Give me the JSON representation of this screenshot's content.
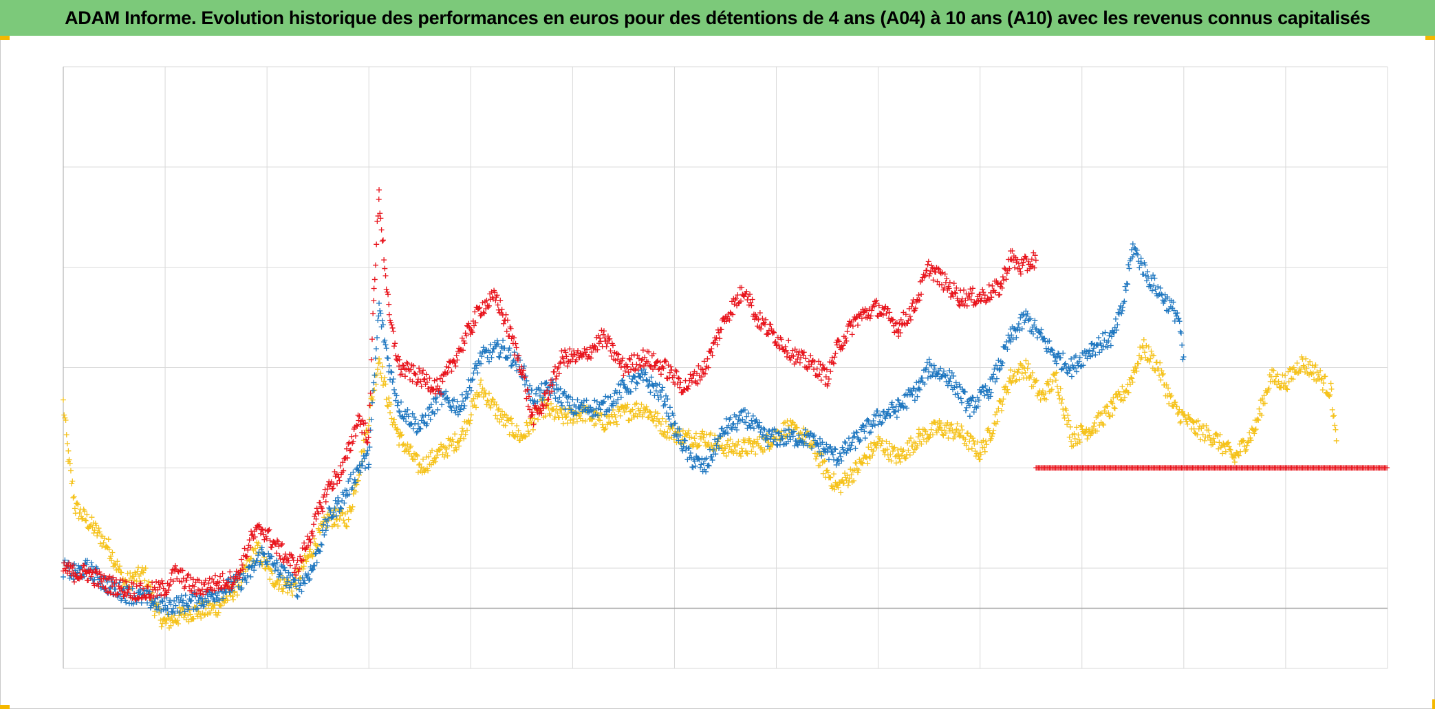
{
  "title": "ADAM Informe. Evolution historique des performances en euros pour des détentions de 4 ans (A04) à 10 ans (A10) avec les revenus connus capitalisés",
  "colors": {
    "title_bg": "#7cc97a",
    "grid": "#d9d9d9",
    "baseline": "#a6a6a6",
    "corner_marks": "#f5b800"
  },
  "chart_data": {
    "type": "scatter",
    "marker": "plus",
    "title": "ADAM Informe. Evolution historique des performances en euros pour des détentions de 4 ans (A04) à 10 ans (A10) avec les revenus connus capitalisés",
    "xlabel": "",
    "ylabel": "",
    "tick_labels_visible": false,
    "grid": true,
    "x_gridlines": 13,
    "y_gridlines": [
      0,
      1,
      2,
      3,
      4,
      5,
      6
    ],
    "baseline_y": 0.6,
    "xlim": [
      0,
      13
    ],
    "ylim": [
      0,
      6
    ],
    "legend": "none",
    "series": [
      {
        "color": "#f5c21b",
        "keypoints": [
          [
            0.0,
            2.65
          ],
          [
            0.05,
            2.1
          ],
          [
            0.12,
            1.6
          ],
          [
            0.3,
            1.4
          ],
          [
            0.45,
            1.2
          ],
          [
            0.6,
            0.85
          ],
          [
            0.8,
            0.95
          ],
          [
            0.9,
            0.6
          ],
          [
            1.0,
            0.45
          ],
          [
            1.2,
            0.55
          ],
          [
            1.5,
            0.6
          ],
          [
            1.7,
            0.8
          ],
          [
            1.9,
            1.2
          ],
          [
            2.05,
            0.9
          ],
          [
            2.25,
            0.8
          ],
          [
            2.4,
            1.1
          ],
          [
            2.6,
            1.5
          ],
          [
            2.8,
            1.5
          ],
          [
            2.95,
            2.2
          ],
          [
            3.1,
            3.1
          ],
          [
            3.2,
            2.6
          ],
          [
            3.3,
            2.3
          ],
          [
            3.5,
            2.0
          ],
          [
            3.7,
            2.15
          ],
          [
            3.9,
            2.3
          ],
          [
            4.1,
            2.8
          ],
          [
            4.3,
            2.5
          ],
          [
            4.5,
            2.3
          ],
          [
            4.7,
            2.6
          ],
          [
            4.9,
            2.5
          ],
          [
            5.1,
            2.55
          ],
          [
            5.3,
            2.45
          ],
          [
            5.5,
            2.55
          ],
          [
            5.7,
            2.6
          ],
          [
            5.9,
            2.4
          ],
          [
            6.1,
            2.3
          ],
          [
            6.3,
            2.3
          ],
          [
            6.5,
            2.2
          ],
          [
            6.7,
            2.2
          ],
          [
            6.9,
            2.25
          ],
          [
            7.1,
            2.4
          ],
          [
            7.3,
            2.3
          ],
          [
            7.5,
            1.95
          ],
          [
            7.6,
            1.8
          ],
          [
            7.8,
            2.0
          ],
          [
            8.0,
            2.25
          ],
          [
            8.2,
            2.1
          ],
          [
            8.4,
            2.3
          ],
          [
            8.6,
            2.4
          ],
          [
            8.8,
            2.35
          ],
          [
            9.0,
            2.15
          ],
          [
            9.1,
            2.35
          ],
          [
            9.3,
            2.9
          ],
          [
            9.45,
            3.0
          ],
          [
            9.6,
            2.7
          ],
          [
            9.75,
            2.9
          ],
          [
            9.9,
            2.3
          ],
          [
            10.1,
            2.4
          ],
          [
            10.3,
            2.6
          ],
          [
            10.45,
            2.8
          ],
          [
            10.6,
            3.2
          ],
          [
            10.75,
            3.0
          ],
          [
            10.9,
            2.6
          ],
          [
            11.1,
            2.4
          ],
          [
            11.3,
            2.3
          ],
          [
            11.5,
            2.1
          ],
          [
            11.7,
            2.4
          ],
          [
            11.85,
            2.9
          ],
          [
            12.0,
            2.85
          ],
          [
            12.15,
            3.05
          ],
          [
            12.3,
            2.95
          ],
          [
            12.45,
            2.75
          ],
          [
            12.5,
            2.2
          ]
        ]
      },
      {
        "color": "#1f77c0",
        "keypoints": [
          [
            0.0,
            1.0
          ],
          [
            0.1,
            0.95
          ],
          [
            0.25,
            1.0
          ],
          [
            0.4,
            0.85
          ],
          [
            0.6,
            0.75
          ],
          [
            0.8,
            0.7
          ],
          [
            1.0,
            0.62
          ],
          [
            1.2,
            0.65
          ],
          [
            1.4,
            0.7
          ],
          [
            1.6,
            0.8
          ],
          [
            1.8,
            0.9
          ],
          [
            1.95,
            1.15
          ],
          [
            2.1,
            1.0
          ],
          [
            2.3,
            0.8
          ],
          [
            2.45,
            1.0
          ],
          [
            2.6,
            1.5
          ],
          [
            2.75,
            1.7
          ],
          [
            2.9,
            2.0
          ],
          [
            3.0,
            2.1
          ],
          [
            3.1,
            3.6
          ],
          [
            3.2,
            3.0
          ],
          [
            3.3,
            2.6
          ],
          [
            3.5,
            2.4
          ],
          [
            3.7,
            2.7
          ],
          [
            3.9,
            2.6
          ],
          [
            4.1,
            3.1
          ],
          [
            4.3,
            3.2
          ],
          [
            4.5,
            3.0
          ],
          [
            4.6,
            2.7
          ],
          [
            4.8,
            2.8
          ],
          [
            5.0,
            2.6
          ],
          [
            5.3,
            2.6
          ],
          [
            5.5,
            2.8
          ],
          [
            5.7,
            2.9
          ],
          [
            5.9,
            2.7
          ],
          [
            6.0,
            2.4
          ],
          [
            6.15,
            2.1
          ],
          [
            6.3,
            2.0
          ],
          [
            6.5,
            2.4
          ],
          [
            6.7,
            2.5
          ],
          [
            6.9,
            2.3
          ],
          [
            7.1,
            2.3
          ],
          [
            7.3,
            2.3
          ],
          [
            7.6,
            2.1
          ],
          [
            7.8,
            2.3
          ],
          [
            8.0,
            2.5
          ],
          [
            8.2,
            2.6
          ],
          [
            8.4,
            2.8
          ],
          [
            8.5,
            3.0
          ],
          [
            8.7,
            2.9
          ],
          [
            8.9,
            2.6
          ],
          [
            9.1,
            2.8
          ],
          [
            9.3,
            3.3
          ],
          [
            9.45,
            3.5
          ],
          [
            9.6,
            3.3
          ],
          [
            9.75,
            3.1
          ],
          [
            9.9,
            3.0
          ],
          [
            10.1,
            3.2
          ],
          [
            10.3,
            3.3
          ],
          [
            10.4,
            3.6
          ],
          [
            10.5,
            4.2
          ],
          [
            10.65,
            3.9
          ],
          [
            10.8,
            3.7
          ],
          [
            10.95,
            3.5
          ],
          [
            11.0,
            3.0
          ]
        ]
      },
      {
        "color": "#e8141c",
        "keypoints": [
          [
            0.0,
            1.0
          ],
          [
            0.1,
            0.95
          ],
          [
            0.25,
            0.95
          ],
          [
            0.4,
            0.85
          ],
          [
            0.6,
            0.8
          ],
          [
            0.8,
            0.75
          ],
          [
            1.0,
            0.8
          ],
          [
            1.1,
            0.95
          ],
          [
            1.3,
            0.8
          ],
          [
            1.5,
            0.85
          ],
          [
            1.7,
            0.9
          ],
          [
            1.85,
            1.3
          ],
          [
            1.95,
            1.4
          ],
          [
            2.1,
            1.2
          ],
          [
            2.3,
            1.0
          ],
          [
            2.45,
            1.4
          ],
          [
            2.6,
            1.8
          ],
          [
            2.75,
            2.0
          ],
          [
            2.9,
            2.5
          ],
          [
            3.0,
            2.3
          ],
          [
            3.05,
            3.8
          ],
          [
            3.1,
            4.7
          ],
          [
            3.2,
            3.5
          ],
          [
            3.3,
            3.0
          ],
          [
            3.5,
            2.9
          ],
          [
            3.7,
            2.8
          ],
          [
            3.9,
            3.2
          ],
          [
            4.0,
            3.4
          ],
          [
            4.1,
            3.6
          ],
          [
            4.25,
            3.7
          ],
          [
            4.4,
            3.3
          ],
          [
            4.5,
            3.0
          ],
          [
            4.6,
            2.5
          ],
          [
            4.7,
            2.6
          ],
          [
            4.9,
            3.1
          ],
          [
            5.1,
            3.1
          ],
          [
            5.3,
            3.3
          ],
          [
            5.5,
            3.0
          ],
          [
            5.7,
            3.1
          ],
          [
            5.9,
            3.0
          ],
          [
            6.1,
            2.8
          ],
          [
            6.3,
            3.0
          ],
          [
            6.5,
            3.5
          ],
          [
            6.7,
            3.8
          ],
          [
            6.8,
            3.5
          ],
          [
            7.0,
            3.3
          ],
          [
            7.2,
            3.1
          ],
          [
            7.4,
            3.0
          ],
          [
            7.5,
            2.9
          ],
          [
            7.6,
            3.2
          ],
          [
            7.8,
            3.5
          ],
          [
            8.0,
            3.6
          ],
          [
            8.2,
            3.4
          ],
          [
            8.35,
            3.6
          ],
          [
            8.5,
            4.0
          ],
          [
            8.6,
            3.9
          ],
          [
            8.8,
            3.7
          ],
          [
            9.0,
            3.7
          ],
          [
            9.2,
            3.8
          ],
          [
            9.3,
            4.1
          ],
          [
            9.4,
            4.0
          ],
          [
            9.5,
            4.05
          ],
          [
            9.55,
            4.1
          ]
        ]
      },
      {
        "color": "#e8141c",
        "keypoints": [
          [
            9.55,
            2.0
          ],
          [
            13.0,
            2.0
          ]
        ]
      }
    ]
  }
}
